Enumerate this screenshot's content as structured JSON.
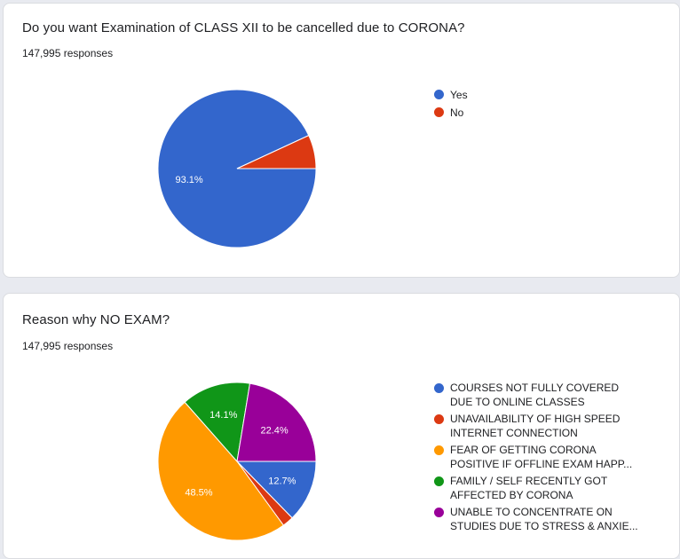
{
  "cards": [
    {
      "title": "Do you want Examination of CLASS XII to be cancelled due to CORONA?",
      "responses": "147,995 responses"
    },
    {
      "title": "Reason why NO EXAM?",
      "responses": "147,995 responses"
    }
  ],
  "chart_data": [
    {
      "type": "pie",
      "categories": [
        "Yes",
        "No"
      ],
      "values": [
        93.1,
        6.9
      ],
      "value_labels": [
        "93.1%",
        ""
      ],
      "colors": [
        "#3366cc",
        "#dc3912"
      ],
      "legend_position": "right"
    },
    {
      "type": "pie",
      "categories": [
        "COURSES NOT FULLY COVERED DUE TO ONLINE CLASSES",
        "UNAVAILABILITY OF HIGH SPEED INTERNET CONNECTION",
        "FEAR OF GETTING CORONA POSITIVE IF OFFLINE EXAM HAPP...",
        "FAMILY / SELF RECENTLY GOT AFFECTED BY CORONA",
        "UNABLE TO CONCENTRATE ON STUDIES DUE TO STRESS & ANXIE..."
      ],
      "legend_lines": [
        [
          "COURSES NOT FULLY COVERED",
          "DUE TO ONLINE CLASSES"
        ],
        [
          "UNAVAILABILITY OF HIGH SPEED",
          "INTERNET CONNECTION"
        ],
        [
          "FEAR OF GETTING CORONA",
          "POSITIVE IF OFFLINE EXAM HAPP..."
        ],
        [
          "FAMILY / SELF RECENTLY GOT",
          "AFFECTED BY CORONA"
        ],
        [
          "UNABLE TO CONCENTRATE ON",
          "STUDIES DUE TO STRESS & ANXIE..."
        ]
      ],
      "values": [
        12.7,
        2.3,
        48.5,
        14.1,
        22.4
      ],
      "value_labels": [
        "12.7%",
        "",
        "48.5%",
        "14.1%",
        "22.4%"
      ],
      "colors": [
        "#3366cc",
        "#dc3912",
        "#ff9900",
        "#109618",
        "#990099"
      ],
      "legend_position": "right"
    }
  ]
}
